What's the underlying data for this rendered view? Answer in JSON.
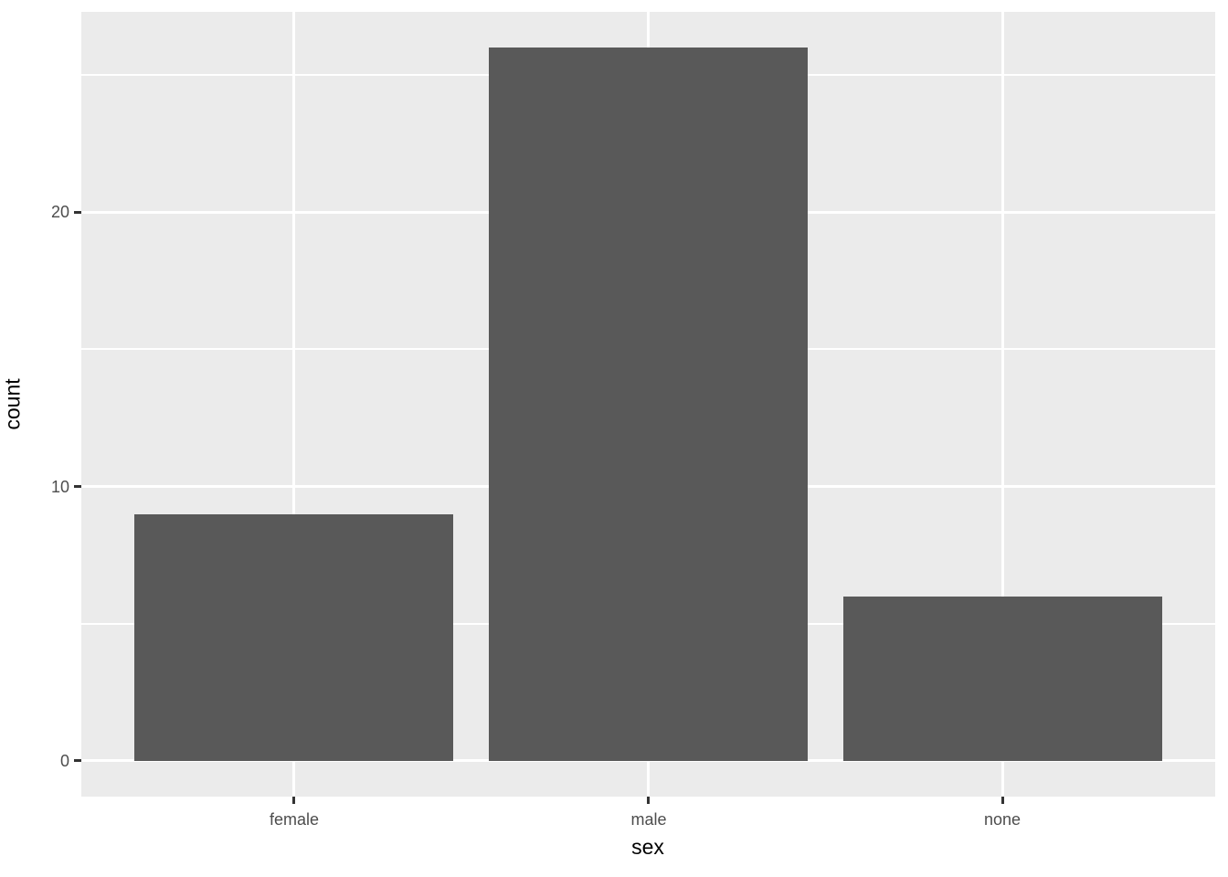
{
  "chart_data": {
    "type": "bar",
    "title": "",
    "xlabel": "sex",
    "ylabel": "count",
    "categories": [
      "female",
      "male",
      "none"
    ],
    "values": [
      9,
      26,
      6
    ],
    "y_ticks": [
      0,
      10,
      20
    ],
    "y_minor_ticks": [
      5,
      15,
      25
    ],
    "ylim": [
      -1.3,
      27.3
    ],
    "grid": "on",
    "legend": "none",
    "bar_width_fraction": 0.9,
    "colors": {
      "bar_fill": "#595959",
      "panel_background": "#EBEBEB",
      "gridline": "#FFFFFF",
      "tick_label": "#4D4D4D",
      "tick_mark": "#333333",
      "axis_title": "#000000",
      "page_background": "#FFFFFF"
    }
  }
}
